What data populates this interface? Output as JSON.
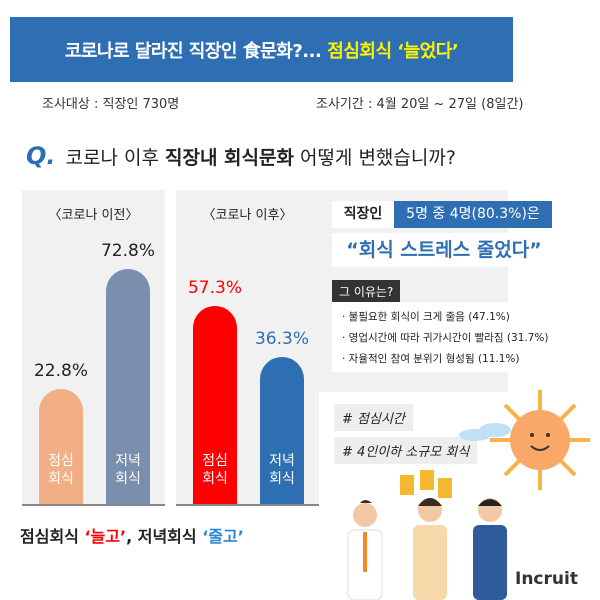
{
  "header": {
    "title": "코로나로 달라진 직장인 食문화?...",
    "title_highlight": "점심회식 ‘늘었다’"
  },
  "survey": {
    "target": "조사대상 : 직장인 730명",
    "period": "조사기간 : 4월 20일 ~ 27일 (8일간)"
  },
  "question": {
    "marker": "Q.",
    "pre": "코로나 이후",
    "bold": "직장내 회식문화",
    "post": "어떻게 변했습니까?"
  },
  "chart_data": [
    {
      "type": "bar",
      "title": "〈코로나 이전〉",
      "categories": [
        "점심 회식",
        "저녁 회식"
      ],
      "values": [
        22.8,
        72.8
      ],
      "data_labels": [
        "22.8%",
        "72.8%"
      ],
      "colors": [
        "#f2ae84",
        "#7a8fae"
      ]
    },
    {
      "type": "bar",
      "title": "〈코로나 이후〉",
      "categories": [
        "점심 회식",
        "저녁 회식"
      ],
      "values": [
        57.3,
        36.3
      ],
      "data_labels": [
        "57.3%",
        "36.3%"
      ],
      "colors": [
        "#ff0000",
        "#2e6fb3"
      ]
    }
  ],
  "conclusion": {
    "a": "점심회식",
    "a_q": "‘늘고’",
    "sep": ",",
    "b": "저녁회식",
    "b_q": "‘줄고’"
  },
  "stress": {
    "who": "직장인",
    "stat": "5명 중 4명(80.3%)은",
    "quote": "“회식 스트레스 줄었다”",
    "reasons_title": "그 이유는?",
    "reasons": [
      "· 불필요한 회식이 크게 줄음 (47.1%)",
      "· 영업시간에 따라 귀가시간이 빨라짐 (31.7%)",
      "· 자율적인 참여 분위기 형성됨 (11.1%)"
    ]
  },
  "tags": [
    "# 점심시간",
    "# 4인이하 소규모 회식"
  ],
  "logo": "Incruit"
}
